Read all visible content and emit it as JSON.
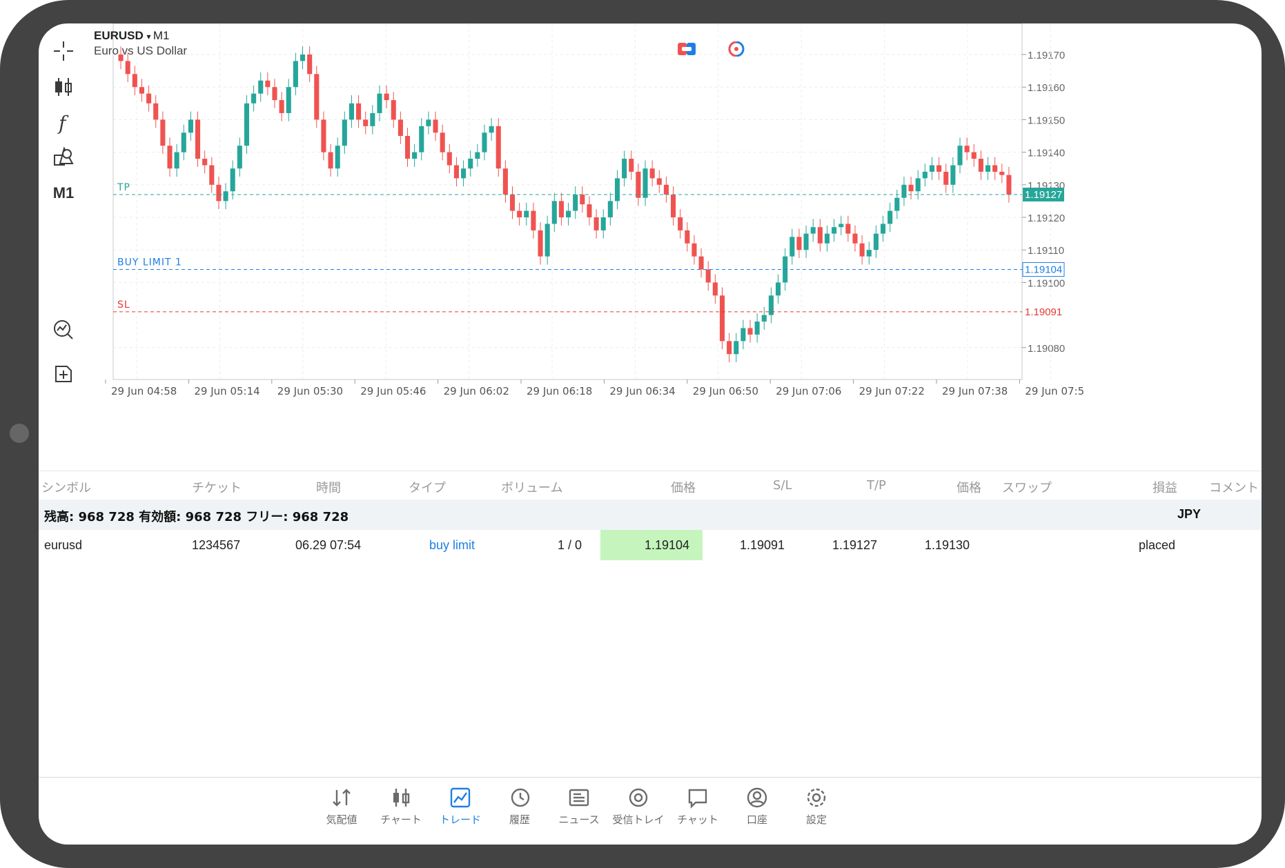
{
  "chart": {
    "symbol": "EURUSD",
    "timeframe": "M1",
    "description": "Euro vs US Dollar",
    "toolbar_timeframe": "M1",
    "price_labels": [
      "1.19170",
      "1.19160",
      "1.19150",
      "1.19140",
      "1.19130",
      "1.19120",
      "1.19110",
      "1.19100",
      "1.19080"
    ],
    "time_labels": [
      "29 Jun 04:58",
      "29 Jun 05:14",
      "29 Jun 05:30",
      "29 Jun 05:46",
      "29 Jun 06:02",
      "29 Jun 06:18",
      "29 Jun 06:34",
      "29 Jun 06:50",
      "29 Jun 07:06",
      "29 Jun 07:22",
      "29 Jun 07:38",
      "29 Jun 07:5"
    ],
    "current_price": "1.19127",
    "levels": {
      "tp": {
        "label": "TP",
        "price_tag": "1.19127",
        "color": "#26a69a"
      },
      "buy_limit": {
        "label": "BUY LIMIT 1",
        "price_tag": "1.19104",
        "color": "#1d7fe5"
      },
      "sl": {
        "label": "SL",
        "price_tag": "1.19091",
        "color": "#e53935"
      }
    },
    "colors": {
      "up": "#26a69a",
      "down": "#ef5350"
    }
  },
  "table": {
    "headers": [
      "シンボル",
      "チケット",
      "時間",
      "タイプ",
      "ボリューム",
      "価格",
      "S/L",
      "T/P",
      "価格",
      "スワップ",
      "損益",
      "コメント"
    ],
    "balance_text": "残高: 968 728 有効額: 968 728 フリー: 968 728",
    "currency": "JPY",
    "order": {
      "symbol": "eurusd",
      "ticket": "1234567",
      "time": "06.29 07:54",
      "type": "buy limit",
      "volume": "1 / 0",
      "price": "1.19104",
      "sl": "1.19091",
      "tp": "1.19127",
      "current_price": "1.19130",
      "comment": "placed"
    }
  },
  "nav": {
    "items": [
      {
        "label": "気配値",
        "icon": "quotes-icon"
      },
      {
        "label": "チャート",
        "icon": "chart-icon"
      },
      {
        "label": "トレード",
        "icon": "trade-icon"
      },
      {
        "label": "履歴",
        "icon": "history-icon"
      },
      {
        "label": "ニュース",
        "icon": "news-icon"
      },
      {
        "label": "受信トレイ",
        "icon": "mail-icon"
      },
      {
        "label": "チャット",
        "icon": "chat-icon"
      },
      {
        "label": "口座",
        "icon": "account-icon"
      },
      {
        "label": "設定",
        "icon": "settings-icon"
      }
    ],
    "active": "トレード"
  }
}
